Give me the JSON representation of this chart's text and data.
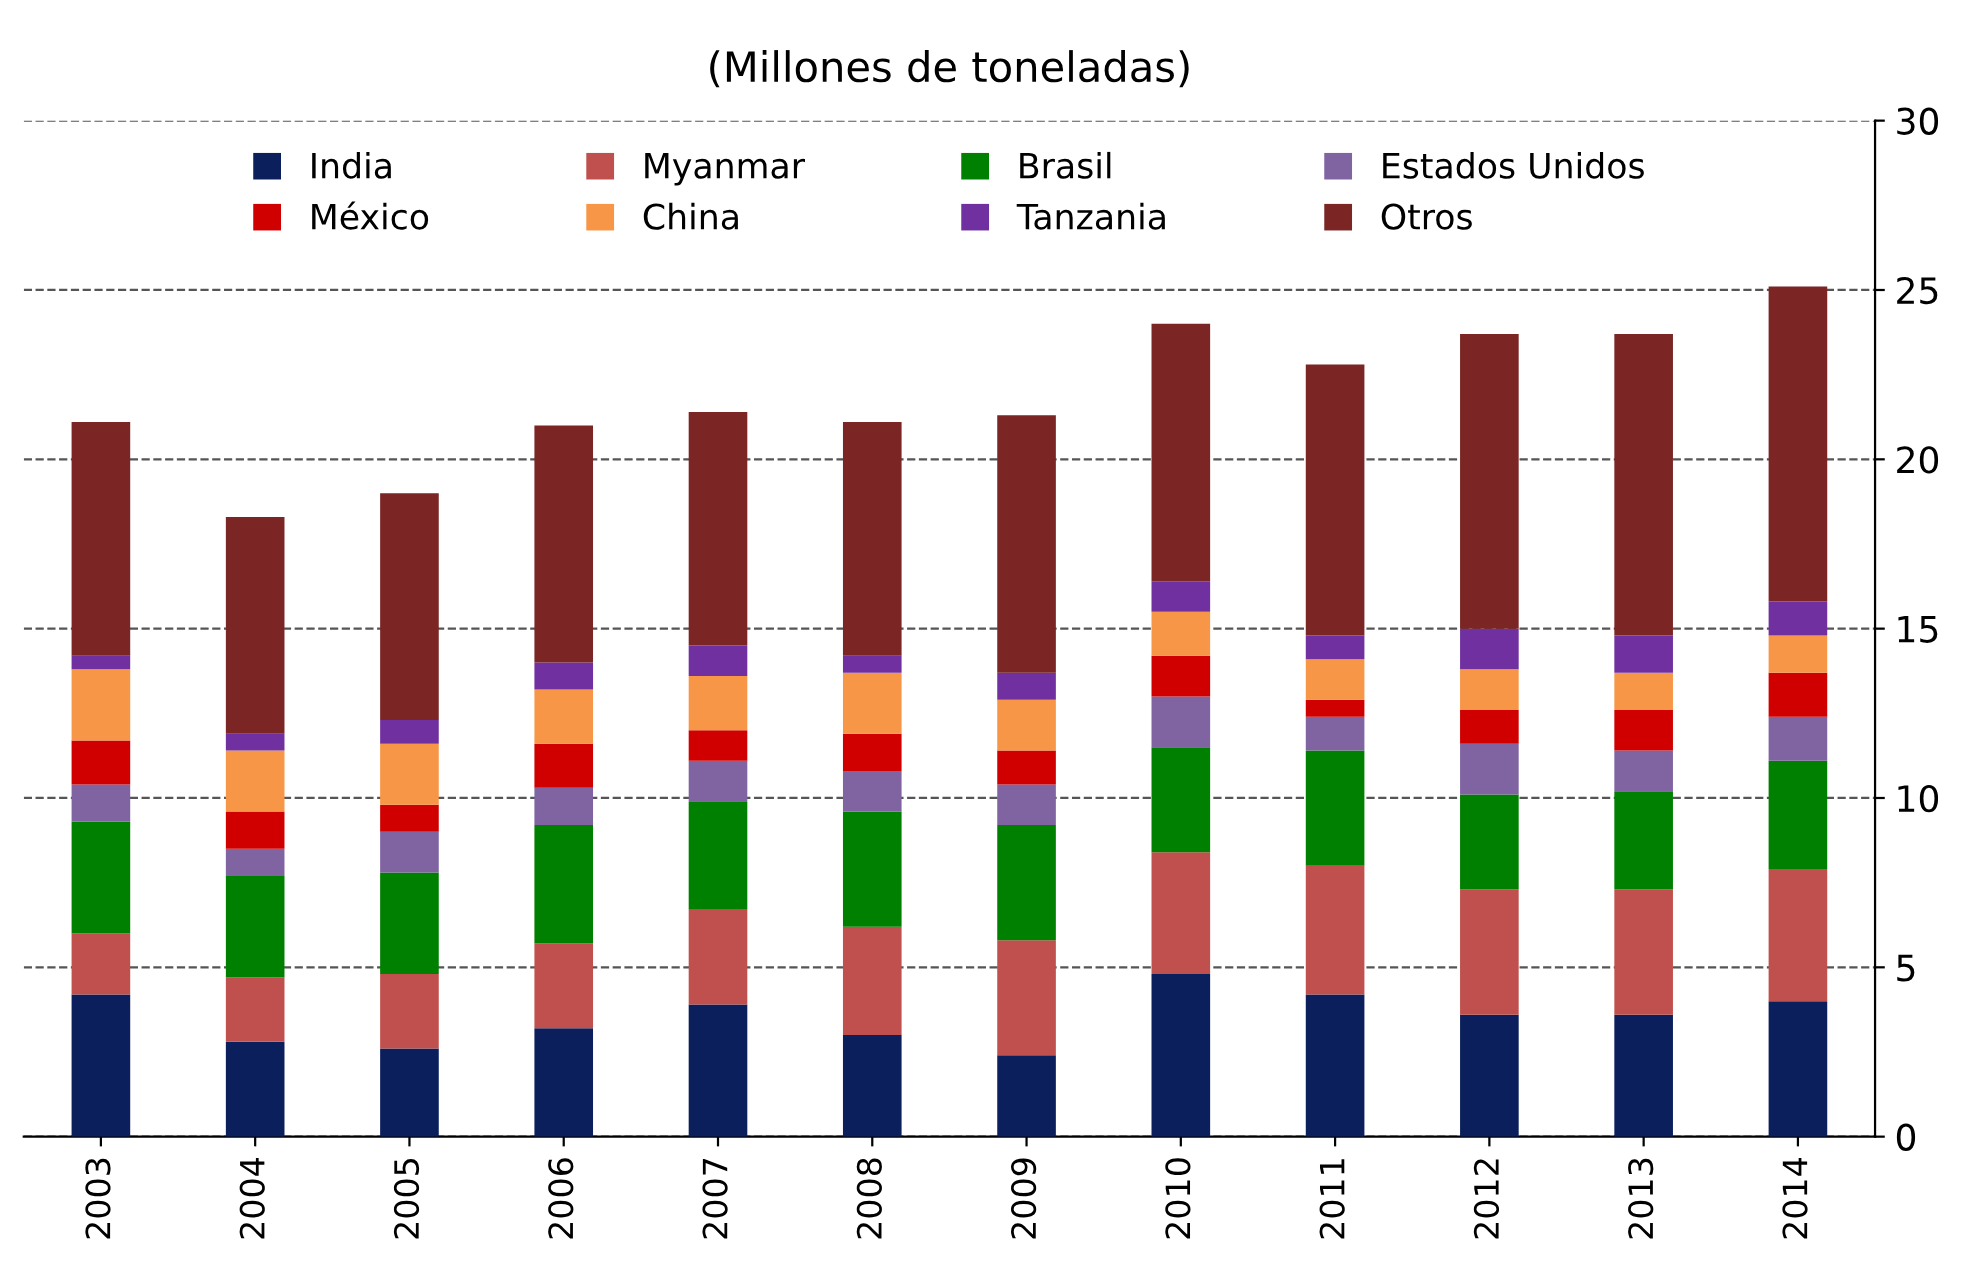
{
  "chart_data": {
    "type": "bar",
    "stacked": true,
    "title": "(Millones de toneladas)",
    "categories": [
      "2003",
      "2004",
      "2005",
      "2006",
      "2007",
      "2008",
      "2009",
      "2010",
      "2011",
      "2012",
      "2013",
      "2014"
    ],
    "series": [
      {
        "name": "India",
        "color": "#0a1f5c",
        "values": [
          4.2,
          2.8,
          2.6,
          3.2,
          3.9,
          3.0,
          2.4,
          4.8,
          4.2,
          3.6,
          3.6,
          4.0
        ]
      },
      {
        "name": "Myanmar",
        "color": "#c0504d",
        "values": [
          1.8,
          1.9,
          2.2,
          2.5,
          2.8,
          3.2,
          3.4,
          3.6,
          3.8,
          3.7,
          3.7,
          3.9
        ]
      },
      {
        "name": "Brasil",
        "color": "#008000",
        "values": [
          3.3,
          3.0,
          3.0,
          3.5,
          3.2,
          3.4,
          3.4,
          3.1,
          3.4,
          2.8,
          2.9,
          3.2
        ]
      },
      {
        "name": "Estados Unidos",
        "color": "#8064a2",
        "values": [
          1.1,
          0.8,
          1.2,
          1.1,
          1.2,
          1.2,
          1.2,
          1.5,
          1.0,
          1.5,
          1.2,
          1.3
        ]
      },
      {
        "name": "México",
        "color": "#d00000",
        "values": [
          1.3,
          1.1,
          0.8,
          1.3,
          0.9,
          1.1,
          1.0,
          1.2,
          0.5,
          1.0,
          1.2,
          1.3
        ]
      },
      {
        "name": "China",
        "color": "#f79646",
        "values": [
          2.1,
          1.8,
          1.8,
          1.6,
          1.6,
          1.8,
          1.5,
          1.3,
          1.2,
          1.2,
          1.1,
          1.1
        ]
      },
      {
        "name": "Tanzania",
        "color": "#7030a0",
        "values": [
          0.4,
          0.5,
          0.7,
          0.8,
          0.9,
          0.5,
          0.8,
          0.9,
          0.7,
          1.2,
          1.1,
          1.0
        ]
      },
      {
        "name": "Otros",
        "color": "#7b2525",
        "values": [
          6.9,
          6.4,
          6.7,
          7.0,
          6.9,
          6.9,
          7.6,
          7.6,
          8.0,
          8.7,
          8.9,
          9.3
        ]
      }
    ],
    "ylim": [
      0,
      30
    ],
    "yticks": [
      0,
      5,
      10,
      15,
      20,
      25,
      30
    ],
    "grid": "y",
    "legend": "top"
  }
}
